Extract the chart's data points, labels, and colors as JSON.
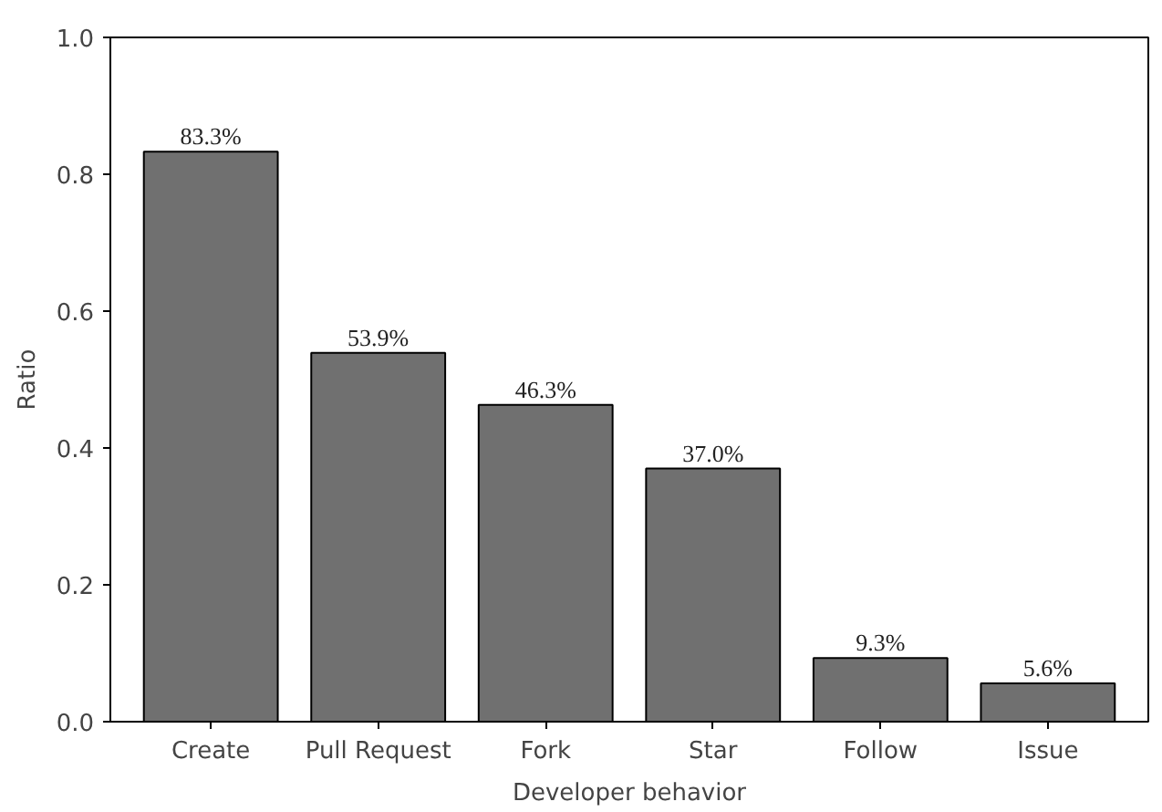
{
  "chart_data": {
    "type": "bar",
    "xlabel": "Developer behavior",
    "ylabel": "Ratio",
    "categories": [
      "Create",
      "Pull Request",
      "Fork",
      "Star",
      "Follow",
      "Issue"
    ],
    "values": [
      0.833,
      0.539,
      0.463,
      0.37,
      0.093,
      0.056
    ],
    "value_labels": [
      "83.3%",
      "53.9%",
      "46.3%",
      "37.0%",
      "9.3%",
      "5.6%"
    ],
    "color": "#707070",
    "ylim": [
      0,
      1
    ],
    "yticks": [
      {
        "value": 0,
        "label": "0.0"
      },
      {
        "value": 0.2,
        "label": "0.2"
      },
      {
        "value": 0.4,
        "label": "0.4"
      },
      {
        "value": 0.6,
        "label": "0.6"
      },
      {
        "value": 0.8,
        "label": "0.8"
      },
      {
        "value": 1,
        "label": "1.0"
      }
    ],
    "grid": false
  }
}
